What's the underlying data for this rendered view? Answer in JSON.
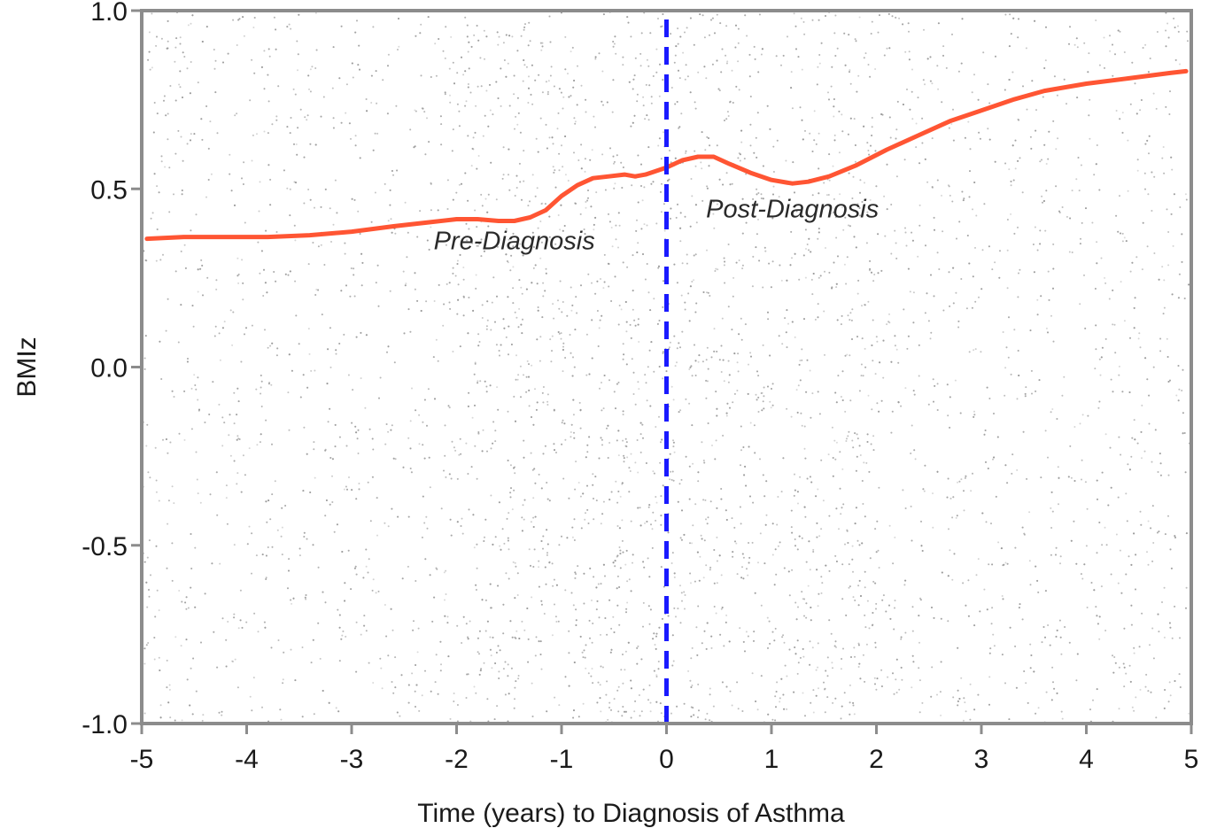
{
  "chart_data": {
    "type": "scatter",
    "title": "",
    "xlabel": "Time (years) to Diagnosis of Asthma",
    "ylabel": "BMIz",
    "xlim": [
      -5,
      5
    ],
    "ylim": [
      -1.0,
      1.0
    ],
    "x_ticks": [
      -5,
      -4,
      -3,
      -2,
      -1,
      0,
      1,
      2,
      3,
      4,
      5
    ],
    "x_tick_labels": [
      "-5",
      "-4",
      "-3",
      "-2",
      "-1",
      "0",
      "1",
      "2",
      "3",
      "4",
      "5"
    ],
    "y_ticks": [
      -1.0,
      -0.5,
      0.0,
      0.5,
      1.0
    ],
    "y_tick_labels": [
      "-1.0",
      "-0.5",
      "0.0",
      "0.5",
      "1.0"
    ],
    "grid": false,
    "background_points": {
      "description_color": "#9a9a9a",
      "x_range": [
        -5,
        5
      ],
      "y_range": [
        -1.0,
        1.0
      ]
    },
    "series": [
      {
        "type": "line",
        "color": "#ff5533",
        "x": [
          -4.95,
          -4.6,
          -4.2,
          -3.8,
          -3.4,
          -3.0,
          -2.6,
          -2.3,
          -2.0,
          -1.8,
          -1.6,
          -1.45,
          -1.3,
          -1.15,
          -1.0,
          -0.85,
          -0.7,
          -0.55,
          -0.4,
          -0.3,
          -0.2,
          -0.1,
          0.0,
          0.15,
          0.3,
          0.45,
          0.6,
          0.8,
          1.0,
          1.2,
          1.35,
          1.55,
          1.8,
          2.1,
          2.4,
          2.7,
          3.0,
          3.3,
          3.6,
          4.0,
          4.4,
          4.8,
          4.95
        ],
        "y": [
          0.36,
          0.365,
          0.365,
          0.365,
          0.37,
          0.38,
          0.395,
          0.405,
          0.415,
          0.415,
          0.41,
          0.41,
          0.42,
          0.44,
          0.48,
          0.51,
          0.53,
          0.535,
          0.54,
          0.535,
          0.54,
          0.55,
          0.56,
          0.58,
          0.59,
          0.59,
          0.57,
          0.545,
          0.525,
          0.515,
          0.52,
          0.535,
          0.565,
          0.61,
          0.65,
          0.69,
          0.72,
          0.75,
          0.775,
          0.795,
          0.81,
          0.825,
          0.83
        ]
      },
      {
        "type": "vline",
        "color": "#1a1aff",
        "style": "dashed",
        "x": 0
      }
    ],
    "annotations": [
      {
        "text": "Pre-Diagnosis",
        "x": -1.45,
        "y": 0.33
      },
      {
        "text": "Post-Diagnosis",
        "x": 1.2,
        "y": 0.42
      }
    ],
    "frame_color": "#8c8c8c"
  }
}
